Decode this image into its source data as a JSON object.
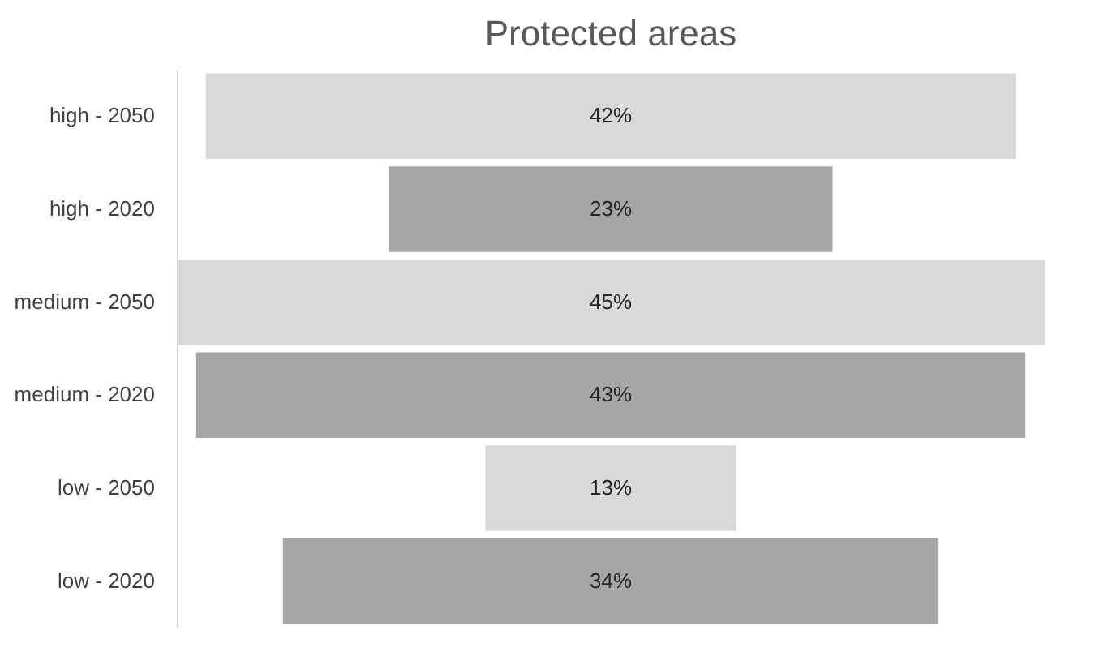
{
  "chart_data": {
    "type": "other",
    "title": "Protected areas",
    "categories": [
      "high - 2050",
      "high - 2020",
      "medium - 2050",
      "medium - 2020",
      "low - 2050",
      "low - 2020"
    ],
    "values": [
      42,
      23,
      45,
      43,
      13,
      34
    ],
    "colors": [
      "#d9d9d9",
      "#a6a6a6",
      "#d9d9d9",
      "#a6a6a6",
      "#d9d9d9",
      "#a6a6a6"
    ],
    "value_labels": [
      "42%",
      "23%",
      "45%",
      "43%",
      "13%",
      "34%"
    ]
  }
}
